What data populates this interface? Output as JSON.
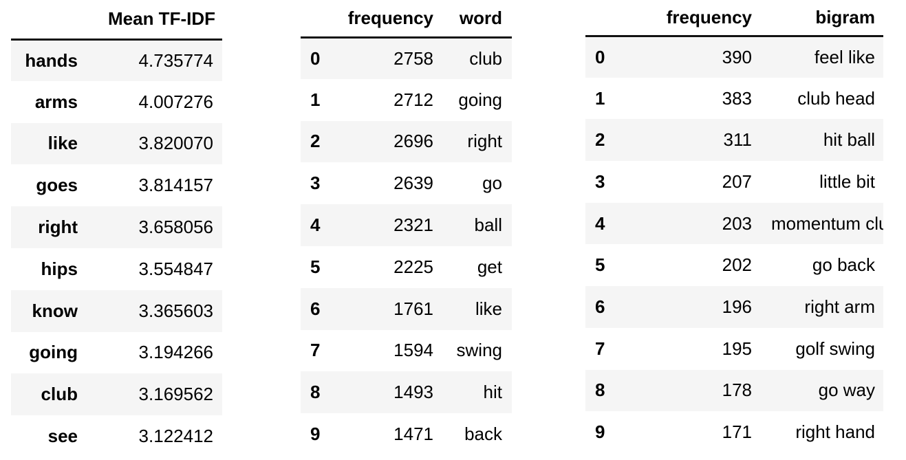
{
  "tfidf_table": {
    "index_header": "",
    "column_header": "Mean TF-IDF",
    "rows": [
      {
        "term": "hands",
        "value": "4.735774"
      },
      {
        "term": "arms",
        "value": "4.007276"
      },
      {
        "term": "like",
        "value": "3.820070"
      },
      {
        "term": "goes",
        "value": "3.814157"
      },
      {
        "term": "right",
        "value": "3.658056"
      },
      {
        "term": "hips",
        "value": "3.554847"
      },
      {
        "term": "know",
        "value": "3.365603"
      },
      {
        "term": "going",
        "value": "3.194266"
      },
      {
        "term": "club",
        "value": "3.169562"
      },
      {
        "term": "see",
        "value": "3.122412"
      }
    ]
  },
  "word_table": {
    "index_header": "",
    "frequency_header": "frequency",
    "word_header": "word",
    "rows": [
      {
        "index": "0",
        "frequency": "2758",
        "word": "club"
      },
      {
        "index": "1",
        "frequency": "2712",
        "word": "going"
      },
      {
        "index": "2",
        "frequency": "2696",
        "word": "right"
      },
      {
        "index": "3",
        "frequency": "2639",
        "word": "go"
      },
      {
        "index": "4",
        "frequency": "2321",
        "word": "ball"
      },
      {
        "index": "5",
        "frequency": "2225",
        "word": "get"
      },
      {
        "index": "6",
        "frequency": "1761",
        "word": "like"
      },
      {
        "index": "7",
        "frequency": "1594",
        "word": "swing"
      },
      {
        "index": "8",
        "frequency": "1493",
        "word": "hit"
      },
      {
        "index": "9",
        "frequency": "1471",
        "word": "back"
      }
    ]
  },
  "bigram_table": {
    "index_header": "",
    "frequency_header": "frequency",
    "bigram_header": "bigram",
    "rows": [
      {
        "index": "0",
        "frequency": "390",
        "bigram": "feel like"
      },
      {
        "index": "1",
        "frequency": "383",
        "bigram": "club head"
      },
      {
        "index": "2",
        "frequency": "311",
        "bigram": "hit ball"
      },
      {
        "index": "3",
        "frequency": "207",
        "bigram": "little bit"
      },
      {
        "index": "4",
        "frequency": "203",
        "bigram": "momentum club"
      },
      {
        "index": "5",
        "frequency": "202",
        "bigram": "go back"
      },
      {
        "index": "6",
        "frequency": "196",
        "bigram": "right arm"
      },
      {
        "index": "7",
        "frequency": "195",
        "bigram": "golf swing"
      },
      {
        "index": "8",
        "frequency": "178",
        "bigram": "go way"
      },
      {
        "index": "9",
        "frequency": "171",
        "bigram": "right hand"
      }
    ]
  }
}
